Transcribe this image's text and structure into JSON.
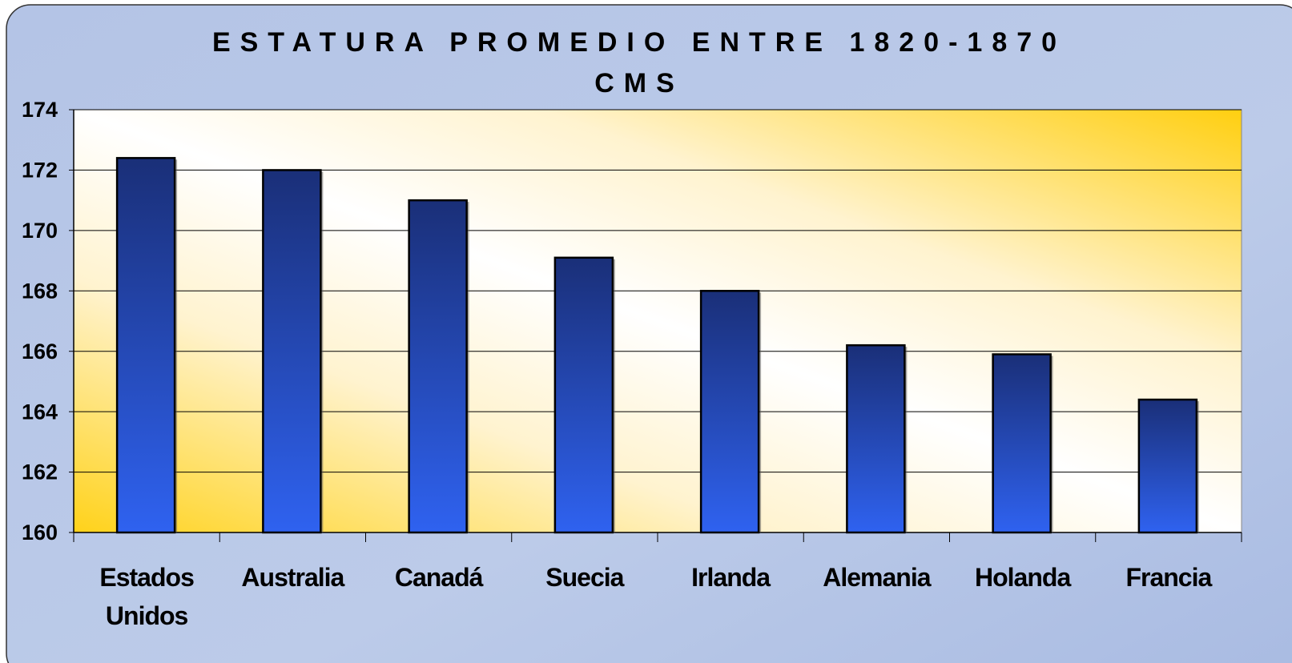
{
  "chart_data": {
    "type": "bar",
    "title": "ESTATURA PROMEDIO ENTRE 1820-1870",
    "subtitle": "CMS",
    "categories": [
      "Estados Unidos",
      "Australia",
      "Canadá",
      "Suecia",
      "Irlanda",
      "Alemania",
      "Holanda",
      "Francia"
    ],
    "values": [
      172.4,
      172.0,
      171.0,
      169.1,
      168.0,
      166.2,
      165.9,
      164.4
    ],
    "color": "#2f62f0",
    "ylim": [
      160,
      174
    ],
    "yticks": [
      160,
      162,
      164,
      166,
      168,
      170,
      172,
      174
    ],
    "grid": true
  }
}
